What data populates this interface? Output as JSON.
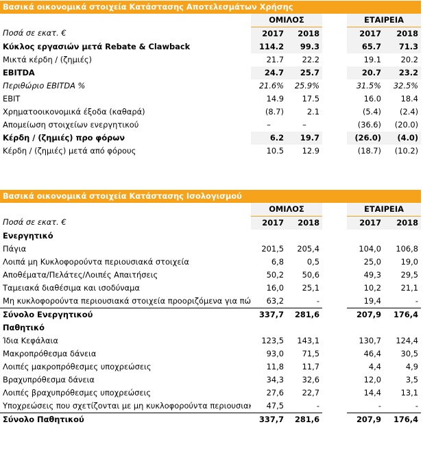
{
  "income": {
    "title": "Βασικά οικονομικά στοιχεία Κατάστασης Αποτελεσμάτων Χρήσης",
    "group_label": "ΟΜΙΛΟΣ",
    "company_label": "ΕΤΑΙΡΕΙΑ",
    "amounts_label": "Ποσά σε εκατ. €",
    "years": [
      "2017",
      "2018",
      "2017",
      "2018"
    ],
    "rows": [
      {
        "label": "Κύκλος εργασιών μετά Rebate & Clawback",
        "v": [
          "114.2",
          "99.3",
          "65.7",
          "71.3"
        ]
      },
      {
        "label": "Μικτά κέρδη / (ζημιές)",
        "v": [
          "21.7",
          "22.2",
          "19.1",
          "20.2"
        ]
      },
      {
        "label": "EBITDA",
        "v": [
          "24.7",
          "25.7",
          "20.7",
          "23.2"
        ]
      },
      {
        "label": "Περιθώριο EBITDA %",
        "v": [
          "21.6%",
          "25.9%",
          "31.5%",
          "32.5%"
        ]
      },
      {
        "label": "EBIT",
        "v": [
          "14.9",
          "17.5",
          "16.0",
          "18.4"
        ]
      },
      {
        "label": "Χρηματοοικονομικά έξοδα (καθαρά)",
        "v": [
          "(8.7)",
          "2.1",
          "(5.4)",
          "(2.4)"
        ]
      },
      {
        "label": "Απομείωση στοιχείων ενεργητικού",
        "v": [
          "–",
          "–",
          "(36.6)",
          "(20.0)"
        ]
      },
      {
        "label": "Κέρδη / (ζημιές) προ φόρων",
        "v": [
          "6.2",
          "19.7",
          "(26.0)",
          "(4.0)"
        ]
      },
      {
        "label": "Κέρδη / (ζημιές) μετά από φόρους",
        "v": [
          "10.5",
          "12.9",
          "(18.7)",
          "(10.2)"
        ]
      }
    ]
  },
  "balance": {
    "title": "Βασικά οικονομικά στοιχεία Κατάστασης Ισολογισμού",
    "group_label": "ΟΜΙΛΟΣ",
    "company_label": "ΕΤΑΙΡΕΙΑ",
    "amounts_label": "Ποσά σε εκατ. €",
    "years": [
      "2017",
      "2018",
      "2017",
      "2018"
    ],
    "assets_header": "Ενεργητικό",
    "assets": [
      {
        "label": "Πάγια",
        "v": [
          "201,5",
          "205,4",
          "104,0",
          "106,8"
        ]
      },
      {
        "label": "Λοιπά μη Κυκλοφορούντα περιουσιακά στοιχεία",
        "v": [
          "6,8",
          "0,5",
          "25,0",
          "19,0"
        ]
      },
      {
        "label": "Αποθέματα/Πελάτες/Λοιπές Απαιτήσεις",
        "v": [
          "50,2",
          "50,6",
          "49,3",
          "29,5"
        ]
      },
      {
        "label": "Ταμειακά διαθέσιμα και ισοδύναμα",
        "v": [
          "16,0",
          "25,1",
          "10,2",
          "21,1"
        ]
      },
      {
        "label": "Μη κυκλοφορούντα περιουσιακά στοιχεία προοριζόμενα για πώληση",
        "v": [
          "63,2",
          "-",
          "19,4",
          "-"
        ]
      }
    ],
    "assets_total": {
      "label": "Σύνολο Ενεργητικού",
      "v": [
        "337,7",
        "281,6",
        "207,9",
        "176,4"
      ]
    },
    "liab_header": "Παθητικό",
    "liabilities": [
      {
        "label": "Ίδια Κεφάλαια",
        "v": [
          "123,5",
          "143,1",
          "130,7",
          "124,4"
        ]
      },
      {
        "label": "Μακροπρόθεσμα δάνεια",
        "v": [
          "93,0",
          "71,5",
          "46,4",
          "30,5"
        ]
      },
      {
        "label": "Λοιπές μακροπρόθεσμες υποχρεώσεις",
        "v": [
          "11,8",
          "11,7",
          "4,4",
          "4,9"
        ]
      },
      {
        "label": "Βραχυπρόθεσμα δάνεια",
        "v": [
          "34,3",
          "32,6",
          "12,0",
          "3,5"
        ]
      },
      {
        "label": "Λοιπές βραχυπρόθεσμες υποχρεώσεις",
        "v": [
          "27,6",
          "22,7",
          "14,4",
          "13,1"
        ]
      },
      {
        "label": "Υποχρεώσεις που σχετίζονται με μη κυκλοφορούντα περιουσιακά στοιχεία προοριζόμενα για πώληση",
        "v": [
          "47,5",
          "-",
          "-",
          "-"
        ]
      }
    ],
    "liab_total": {
      "label": "Σύνολο Παθητικού",
      "v": [
        "337,7",
        "281,6",
        "207,9",
        "176,4"
      ]
    }
  },
  "colors": {
    "accent": "#f7a21b",
    "header_bg": "#f2f2f2"
  }
}
